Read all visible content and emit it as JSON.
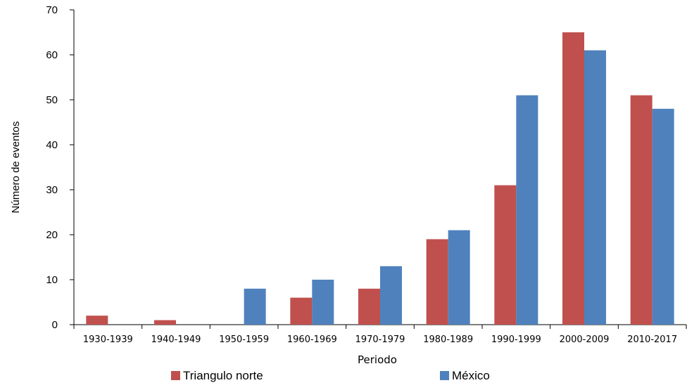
{
  "chart_data": {
    "type": "bar",
    "xlabel": "Periodo",
    "ylabel": "Número de eventos",
    "ylim": [
      0,
      70
    ],
    "yticks": [
      "0",
      "10",
      "20",
      "30",
      "40",
      "50",
      "60",
      "70"
    ],
    "categories": [
      "1930-1939",
      "1940-1949",
      "1950-1959",
      "1960-1969",
      "1970-1979",
      "1980-1989",
      "1990-1999",
      "2000-2009",
      "2010-2017"
    ],
    "series": [
      {
        "name": "Triangulo norte",
        "color": "#c0504d",
        "values": [
          2,
          1,
          0,
          6,
          8,
          19,
          31,
          65,
          51
        ]
      },
      {
        "name": "México",
        "color": "#4f81bd",
        "values": [
          0,
          0,
          8,
          10,
          13,
          21,
          51,
          61,
          48
        ]
      }
    ],
    "grid": false,
    "legend_position": "bottom"
  }
}
